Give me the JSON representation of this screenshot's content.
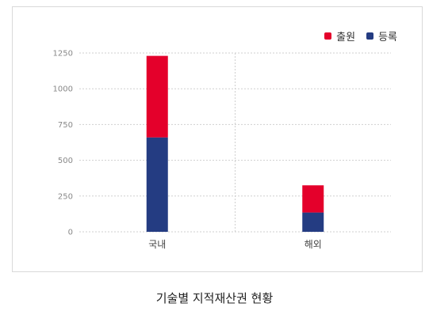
{
  "chart_data": {
    "type": "bar",
    "stacked": true,
    "categories": [
      "국내",
      "해외"
    ],
    "series": [
      {
        "name": "등록",
        "values": [
          660,
          135
        ],
        "color": "#243c82"
      },
      {
        "name": "출원",
        "values": [
          570,
          190
        ],
        "color": "#e4002b"
      }
    ],
    "ylim": [
      0,
      1250
    ],
    "yticks": [
      0,
      250,
      500,
      750,
      1000,
      1250
    ],
    "grid": true,
    "legend": "top-right",
    "legend_order": [
      "출원",
      "등록"
    ]
  },
  "caption": "기술별 지적재산권 현황"
}
